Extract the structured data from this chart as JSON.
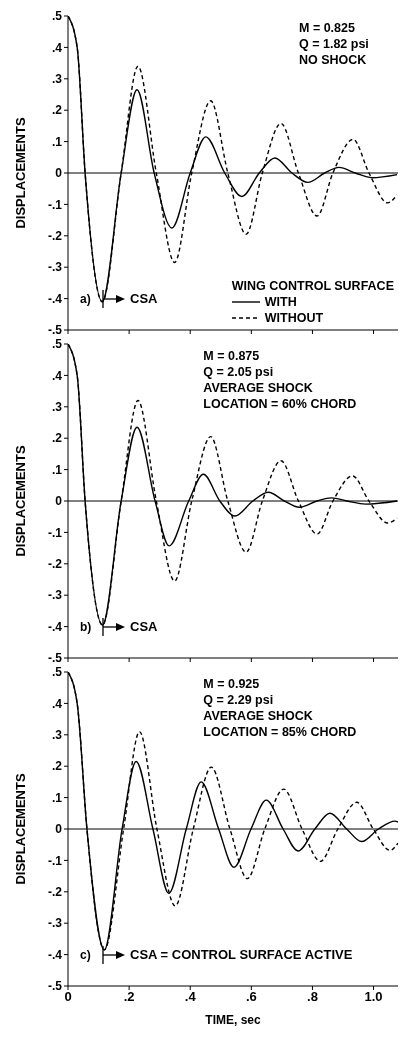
{
  "chart_data": [
    {
      "type": "line",
      "title": "a)",
      "ylabel": "DISPLACEMENTS",
      "legend_title": "WING CONTROL SURFACE",
      "legend": "bottom right",
      "tick_labels": "y",
      "marker": "none",
      "xlim": [
        0,
        1.08
      ],
      "xticks": [
        {
          "value": 0,
          "label": null
        },
        {
          "value": 0.2,
          "label": null
        },
        {
          "value": 0.4,
          "label": null
        },
        {
          "value": 0.6,
          "label": null
        },
        {
          "value": 0.8,
          "label": null
        },
        {
          "value": 1.0,
          "label": null
        }
      ],
      "ylim": [
        -0.5,
        0.5
      ],
      "yticks": [
        {
          "value": -0.5,
          "label": "-.5"
        },
        {
          "value": -0.4,
          "label": "-.4"
        },
        {
          "value": -0.3,
          "label": "-.3"
        },
        {
          "value": -0.2,
          "label": "-.2"
        },
        {
          "value": -0.1,
          "label": "-.1"
        },
        {
          "value": 0,
          "label": "0"
        },
        {
          "value": 0.1,
          "label": ".1"
        },
        {
          "value": 0.2,
          "label": ".2"
        },
        {
          "value": 0.3,
          "label": ".3"
        },
        {
          "value": 0.4,
          "label": ".4"
        },
        {
          "value": 0.5,
          "label": ".5"
        }
      ],
      "ref_lines": [
        {
          "axis": "y",
          "value": 0
        }
      ],
      "annotations": [
        "M = 0.825",
        "Q = 1.82 psi",
        "NO SHOCK",
        "CSA"
      ],
      "series": [
        {
          "name": "WITH",
          "color": "#000000",
          "line_style": "solid",
          "x": [
            0,
            0.03,
            0.056,
            0.112,
            0.174,
            0.226,
            0.282,
            0.34,
            0.4,
            0.451,
            0.513,
            0.569,
            0.626,
            0.677,
            0.733,
            0.785,
            0.84,
            0.887,
            0.94,
            0.995,
            1.077
          ],
          "values": [
            0.5,
            0.4,
            0,
            -0.41,
            0,
            0.265,
            0,
            -0.175,
            0,
            0.115,
            0,
            -0.075,
            0,
            0.048,
            0,
            -0.03,
            0,
            0.018,
            0,
            -0.015,
            -0.005
          ]
        },
        {
          "name": "WITHOUT",
          "color": "#000000",
          "line_style": "dashed",
          "x": [
            0,
            0.03,
            0.056,
            0.112,
            0.174,
            0.229,
            0.289,
            0.349,
            0.405,
            0.467,
            0.523,
            0.583,
            0.636,
            0.697,
            0.754,
            0.815,
            0.867,
            0.933,
            0.985,
            1.046,
            1.077
          ],
          "values": [
            0.5,
            0.4,
            0,
            -0.41,
            0,
            0.34,
            0,
            -0.285,
            0,
            0.23,
            0,
            -0.195,
            0,
            0.158,
            0,
            -0.137,
            0,
            0.107,
            0,
            -0.095,
            -0.07
          ]
        }
      ]
    },
    {
      "type": "line",
      "title": "b)",
      "ylabel": "DISPLACEMENTS",
      "tick_labels": "y",
      "marker": "none",
      "xlim": [
        0,
        1.08
      ],
      "xticks": [
        {
          "value": 0,
          "label": null
        },
        {
          "value": 0.2,
          "label": null
        },
        {
          "value": 0.4,
          "label": null
        },
        {
          "value": 0.6,
          "label": null
        },
        {
          "value": 0.8,
          "label": null
        },
        {
          "value": 1.0,
          "label": null
        }
      ],
      "ylim": [
        -0.5,
        0.5
      ],
      "yticks": [
        {
          "value": -0.5,
          "label": "-.5"
        },
        {
          "value": -0.4,
          "label": "-.4"
        },
        {
          "value": -0.3,
          "label": "-.3"
        },
        {
          "value": -0.2,
          "label": "-.2"
        },
        {
          "value": -0.1,
          "label": "-.1"
        },
        {
          "value": 0,
          "label": "0"
        },
        {
          "value": 0.1,
          "label": ".1"
        },
        {
          "value": 0.2,
          "label": ".2"
        },
        {
          "value": 0.3,
          "label": ".3"
        },
        {
          "value": 0.4,
          "label": ".4"
        },
        {
          "value": 0.5,
          "label": ".5"
        }
      ],
      "ref_lines": [
        {
          "axis": "y",
          "value": 0
        }
      ],
      "annotations": [
        "M = 0.875",
        "Q = 2.05 psi",
        "AVERAGE SHOCK",
        "LOCATION = 60% CHORD",
        "CSA"
      ],
      "series": [
        {
          "color": "#000000",
          "line_style": "solid",
          "x": [
            0,
            0.03,
            0.056,
            0.113,
            0.174,
            0.226,
            0.285,
            0.331,
            0.395,
            0.443,
            0.497,
            0.546,
            0.605,
            0.656,
            0.708,
            0.757,
            0.815,
            0.862,
            0.913,
            0.974,
            1.077
          ],
          "values": [
            0.5,
            0.4,
            0,
            -0.395,
            0,
            0.235,
            0,
            -0.143,
            0,
            0.085,
            0,
            -0.048,
            0,
            0.028,
            0,
            -0.02,
            0,
            0.01,
            0,
            -0.01,
            0
          ]
        },
        {
          "color": "#000000",
          "line_style": "dashed",
          "x": [
            0,
            0.03,
            0.056,
            0.113,
            0.174,
            0.229,
            0.289,
            0.349,
            0.405,
            0.467,
            0.523,
            0.583,
            0.636,
            0.697,
            0.754,
            0.815,
            0.867,
            0.931,
            0.985,
            1.046,
            1.077
          ],
          "values": [
            0.5,
            0.4,
            0,
            -0.395,
            0,
            0.32,
            0,
            -0.255,
            0,
            0.205,
            0,
            -0.163,
            0,
            0.128,
            0,
            -0.105,
            0,
            0.08,
            0,
            -0.07,
            -0.055
          ]
        }
      ]
    },
    {
      "type": "line",
      "title": "c)",
      "ylabel": "DISPLACEMENTS",
      "xlabel": "TIME, sec",
      "marker": "none",
      "xlim": [
        0,
        1.08
      ],
      "xticks": [
        {
          "value": 0,
          "label": "0"
        },
        {
          "value": 0.2,
          "label": ".2"
        },
        {
          "value": 0.4,
          "label": ".4"
        },
        {
          "value": 0.6,
          "label": ".6"
        },
        {
          "value": 0.8,
          "label": ".8"
        },
        {
          "value": 1.0,
          "label": "1.0"
        }
      ],
      "ylim": [
        -0.5,
        0.5
      ],
      "yticks": [
        {
          "value": -0.5,
          "label": "-.5"
        },
        {
          "value": -0.4,
          "label": "-.4"
        },
        {
          "value": -0.3,
          "label": "-.3"
        },
        {
          "value": -0.2,
          "label": "-.2"
        },
        {
          "value": -0.1,
          "label": "-.1"
        },
        {
          "value": 0,
          "label": "0"
        },
        {
          "value": 0.1,
          "label": ".1"
        },
        {
          "value": 0.2,
          "label": ".2"
        },
        {
          "value": 0.3,
          "label": ".3"
        },
        {
          "value": 0.4,
          "label": ".4"
        },
        {
          "value": 0.5,
          "label": ".5"
        }
      ],
      "ref_lines": [
        {
          "axis": "y",
          "value": 0
        }
      ],
      "annotations": [
        "M = 0.925",
        "Q = 2.29 psi",
        "AVERAGE SHOCK",
        "LOCATION = 85% CHORD",
        "CSA = CONTROL SURFACE ACTIVE"
      ],
      "series": [
        {
          "color": "#000000",
          "line_style": "solid",
          "x": [
            0,
            0.03,
            0.062,
            0.119,
            0.177,
            0.223,
            0.278,
            0.33,
            0.387,
            0.436,
            0.493,
            0.543,
            0.599,
            0.649,
            0.704,
            0.753,
            0.808,
            0.857,
            0.912,
            0.961,
            1.016,
            1.07,
            1.08
          ],
          "values": [
            0.5,
            0.4,
            0,
            -0.385,
            0,
            0.215,
            0,
            -0.205,
            0,
            0.15,
            0,
            -0.122,
            0,
            0.092,
            0,
            -0.07,
            0,
            0.05,
            0,
            -0.04,
            0,
            0.025,
            0.022
          ]
        },
        {
          "color": "#000000",
          "line_style": "dashed",
          "x": [
            0,
            0.03,
            0.062,
            0.119,
            0.182,
            0.234,
            0.291,
            0.351,
            0.41,
            0.469,
            0.53,
            0.587,
            0.644,
            0.706,
            0.766,
            0.826,
            0.883,
            0.945,
            0.999,
            1.054,
            1.08
          ],
          "values": [
            0.5,
            0.4,
            0,
            -0.385,
            0,
            0.31,
            0,
            -0.245,
            0,
            0.197,
            0,
            -0.158,
            0,
            0.127,
            0,
            -0.103,
            0,
            0.085,
            0,
            -0.068,
            -0.045
          ]
        }
      ]
    }
  ]
}
